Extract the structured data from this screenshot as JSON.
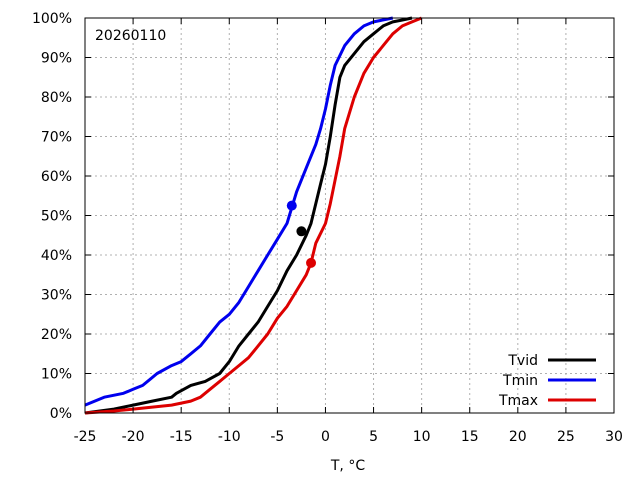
{
  "chart_data": {
    "type": "line",
    "annotation": "20260110",
    "xlabel": "T, °C",
    "ylabel": "",
    "xlim": [
      -25,
      30
    ],
    "ylim": [
      0,
      100
    ],
    "grid": true,
    "legend_position": "bottom-right",
    "x_ticks": [
      "-25",
      "-20",
      "-15",
      "-10",
      "-5",
      "0",
      "5",
      "10",
      "15",
      "20",
      "25",
      "30"
    ],
    "y_ticks": [
      "0%",
      "10%",
      "20%",
      "30%",
      "40%",
      "50%",
      "60%",
      "70%",
      "80%",
      "90%",
      "100%"
    ],
    "series": [
      {
        "name": "Tvid",
        "color": "#000000",
        "marker": {
          "x": -2.5,
          "y": 46
        },
        "x": [
          -25,
          -22,
          -20,
          -18,
          -16,
          -15.5,
          -14,
          -12.5,
          -11,
          -10,
          -9,
          -8,
          -7,
          -6,
          -5,
          -4,
          -3,
          -2,
          -1.5,
          -1,
          -0.5,
          0,
          0.5,
          1,
          1.5,
          2,
          3,
          4,
          5,
          6,
          7,
          8,
          9
        ],
        "y": [
          0,
          1,
          2,
          3,
          4,
          5,
          7,
          8,
          10,
          13,
          17,
          20,
          23,
          27,
          31,
          36,
          40,
          45,
          48,
          53,
          58,
          63,
          70,
          78,
          85,
          88,
          91,
          94,
          96,
          98,
          99,
          99.5,
          100
        ]
      },
      {
        "name": "Tmin",
        "color": "#0000ee",
        "marker": {
          "x": -3.5,
          "y": 52.5
        },
        "x": [
          -25,
          -23,
          -21,
          -20,
          -19,
          -17.5,
          -16,
          -15,
          -14,
          -13,
          -12,
          -11,
          -10,
          -9,
          -8,
          -7,
          -6,
          -5,
          -4,
          -3.5,
          -3,
          -2,
          -1,
          -0.5,
          0,
          0.5,
          1,
          2,
          3,
          4,
          5,
          7
        ],
        "y": [
          2,
          4,
          5,
          6,
          7,
          10,
          12,
          13,
          15,
          17,
          20,
          23,
          25,
          28,
          32,
          36,
          40,
          44,
          48,
          52,
          56,
          62,
          68,
          72,
          77,
          83,
          88,
          93,
          96,
          98,
          99,
          100
        ]
      },
      {
        "name": "Tmax",
        "color": "#dd0000",
        "marker": {
          "x": -1.5,
          "y": 38
        },
        "x": [
          -25,
          -22,
          -20,
          -18,
          -16,
          -14,
          -13,
          -12,
          -11,
          -10,
          -9,
          -8,
          -7,
          -6,
          -5,
          -4,
          -3,
          -2,
          -1.5,
          -1,
          0,
          0.5,
          1,
          1.5,
          2,
          3,
          4,
          5,
          6,
          7,
          8,
          9,
          10
        ],
        "y": [
          0,
          0.5,
          1,
          1.5,
          2,
          3,
          4,
          6,
          8,
          10,
          12,
          14,
          17,
          20,
          24,
          27,
          31,
          35,
          38,
          43,
          48,
          53,
          59,
          65,
          72,
          80,
          86,
          90,
          93,
          96,
          98,
          99,
          100
        ]
      }
    ]
  }
}
